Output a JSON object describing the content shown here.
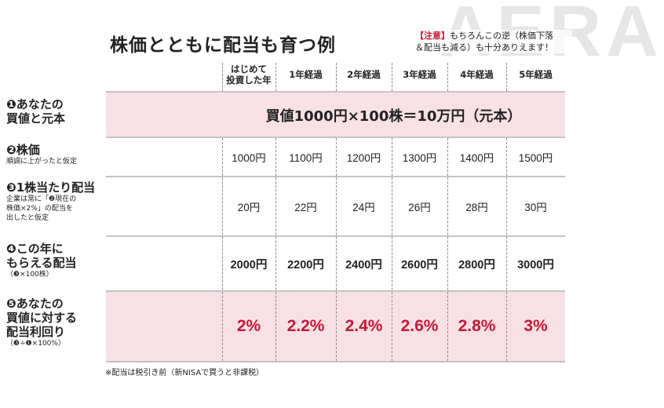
{
  "watermark": "AERA",
  "title": "株価とともに配当も育つ例",
  "note": {
    "tag": "【注意】",
    "line1": "もちろんこの逆（株価下落",
    "line2": "＆配当も減る）も十分ありえます！"
  },
  "columns": [
    {
      "line1": "はじめて",
      "line2": "投資した年"
    },
    {
      "line1": "1年経過",
      "line2": ""
    },
    {
      "line1": "2年経過",
      "line2": ""
    },
    {
      "line1": "3年経過",
      "line2": ""
    },
    {
      "line1": "4年経過",
      "line2": ""
    },
    {
      "line1": "5年経過",
      "line2": ""
    }
  ],
  "rows": {
    "purchase": {
      "label1": "❶あなたの",
      "label2": "買値と元本",
      "value": "買値1000円×100株＝10万円（元本）"
    },
    "price": {
      "label1": "❷株価",
      "sub": "順調に上がったと仮定",
      "values": [
        "1000円",
        "1100円",
        "1200円",
        "1300円",
        "1400円",
        "1500円"
      ]
    },
    "dividend": {
      "label1": "❸1株当たり配当",
      "sub1": "企業は常に「❷現在の",
      "sub2": "株価×2%」の配当を",
      "sub3": "出したと仮定",
      "values": [
        "20円",
        "22円",
        "24円",
        "26円",
        "28円",
        "30円"
      ]
    },
    "total": {
      "label1": "❹この年に",
      "label2": "もらえる配当",
      "sub": "（❸×100株）",
      "values": [
        "2000円",
        "2200円",
        "2400円",
        "2600円",
        "2800円",
        "3000円"
      ]
    },
    "yield": {
      "label1": "❺あなたの",
      "label2": "買値に対する",
      "label3": "配当利回り",
      "sub": "（❸÷❶×100%）",
      "values": [
        "2%",
        "2.2%",
        "2.4%",
        "2.6%",
        "2.8%",
        "3%"
      ]
    }
  },
  "footnote": "※配当は税引き前（新NISAで買うと非課税）",
  "colors": {
    "accent": "#c8173a",
    "pink_row": "#f8e1e5",
    "rule": "#c4c4c4"
  }
}
